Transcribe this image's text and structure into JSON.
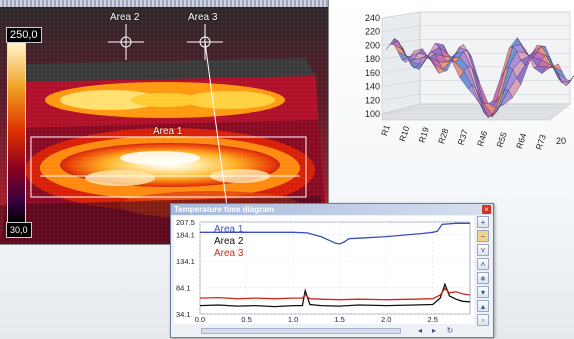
{
  "thermal_view": {
    "scale_max": "250,0",
    "scale_min": "30,0",
    "area_labels": [
      "Area 1",
      "Area 2",
      "Area 3"
    ]
  },
  "surface_chart": {
    "y_ticks": [
      "240",
      "220",
      "200",
      "180",
      "160",
      "140",
      "120",
      "100"
    ],
    "row_labels": [
      "R1",
      "R10",
      "R19",
      "R28",
      "R37",
      "R46",
      "R55",
      "R64",
      "R73"
    ],
    "depth_label": "20"
  },
  "temperature_window": {
    "title": "Temperature time diagram",
    "close_icon": "×"
  },
  "chart_data": {
    "type": "line",
    "title": "Temperature time diagram",
    "xlim": [
      0.0,
      2.9
    ],
    "ylim": [
      34.1,
      207.5
    ],
    "x_ticks": [
      "0.0",
      "0.5",
      "1.0",
      "1.5",
      "2.0",
      "2.5"
    ],
    "y_ticks": [
      "207.5",
      "184.1",
      "134.1",
      "84.1",
      "34.1"
    ],
    "legend_position": "top-left",
    "colors": {
      "area1": "#3b4fb8",
      "area2": "#111111",
      "area3": "#cc2a1e"
    },
    "series": [
      {
        "name": "Area 1",
        "x": [
          0.0,
          0.2,
          0.5,
          0.8,
          1.0,
          1.15,
          1.3,
          1.4,
          1.45,
          1.5,
          1.55,
          1.6,
          1.8,
          2.0,
          2.2,
          2.4,
          2.5,
          2.55,
          2.6,
          2.75,
          2.9
        ],
        "y": [
          188,
          188,
          188,
          188,
          188,
          187,
          180,
          172,
          168,
          166,
          170,
          176,
          178,
          180,
          183,
          186,
          188,
          190,
          203,
          205,
          205
        ]
      },
      {
        "name": "Area 2",
        "x": [
          0.0,
          0.2,
          0.4,
          0.6,
          0.8,
          1.0,
          1.1,
          1.13,
          1.18,
          1.3,
          1.5,
          1.7,
          2.0,
          2.3,
          2.5,
          2.58,
          2.63,
          2.68,
          2.75,
          2.82,
          2.9
        ],
        "y": [
          50,
          51,
          49,
          50,
          48,
          50,
          50,
          78,
          52,
          50,
          49,
          51,
          50,
          51,
          52,
          64,
          90,
          68,
          62,
          58,
          57
        ]
      },
      {
        "name": "Area 3",
        "x": [
          0.0,
          0.2,
          0.4,
          0.6,
          0.8,
          1.0,
          1.1,
          1.13,
          1.18,
          1.3,
          1.5,
          1.7,
          2.0,
          2.3,
          2.5,
          2.58,
          2.63,
          2.68,
          2.75,
          2.82,
          2.9
        ],
        "y": [
          64,
          65,
          63,
          64,
          63,
          64,
          64,
          70,
          63,
          62,
          61,
          62,
          61,
          62,
          63,
          70,
          82,
          74,
          76,
          72,
          70
        ]
      }
    ]
  },
  "icons": {
    "side_buttons": [
      "zoom-in-icon",
      "zoom-out-icon",
      "chevron-down-icon",
      "chevron-up-icon",
      "settings-icon",
      "arrow-down-icon",
      "arrow-up-icon",
      "square-icon"
    ],
    "bottom_buttons": [
      "arrow-left-icon",
      "arrow-right-icon",
      "refresh-icon"
    ]
  }
}
